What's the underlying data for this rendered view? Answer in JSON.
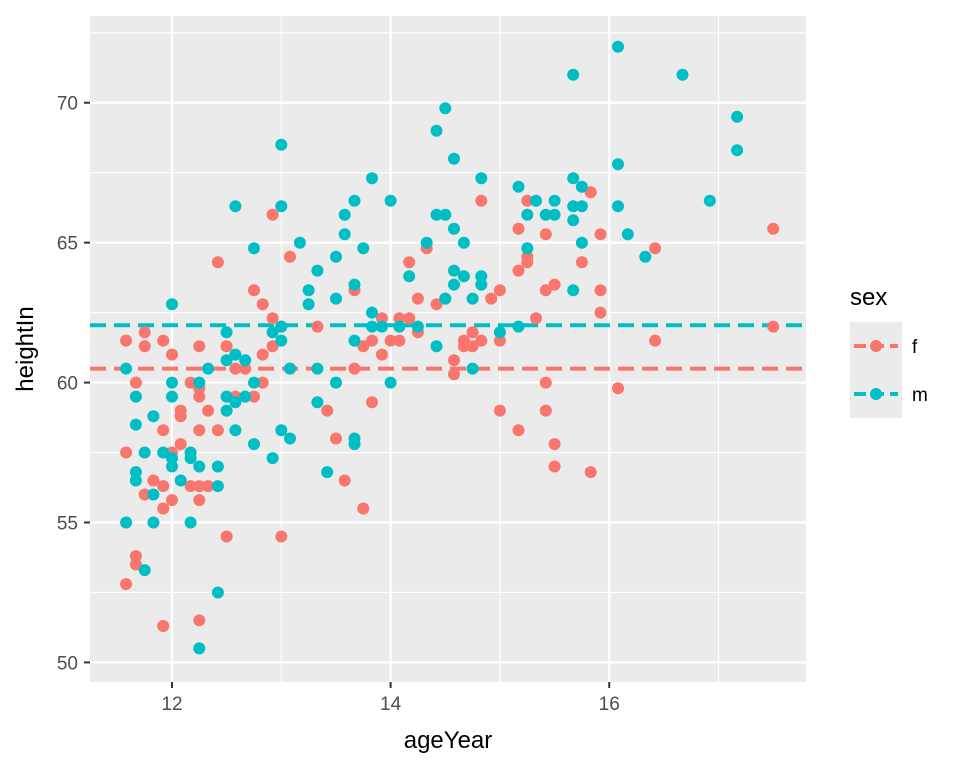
{
  "chart_data": {
    "type": "scatter",
    "xlabel": "ageYear",
    "ylabel": "heightIn",
    "xlim": [
      11.25,
      17.8
    ],
    "ylim": [
      49.3,
      73.1
    ],
    "x_ticks": [
      12,
      14,
      16
    ],
    "x_tick_labels": [
      "12",
      "14",
      "16"
    ],
    "y_ticks": [
      50,
      55,
      60,
      65,
      70
    ],
    "y_tick_labels": [
      "50",
      "55",
      "60",
      "65",
      "70"
    ],
    "grid": true,
    "legend": {
      "title": "sex",
      "position": "right",
      "entries": [
        "f",
        "m"
      ]
    },
    "colors": {
      "f": "#F8766D",
      "m": "#00BFC4",
      "panel": "#EBEBEB",
      "grid": "#FFFFFF"
    },
    "series": [
      {
        "name": "f",
        "mean_line": 60.5,
        "points": [
          [
            11.58,
            52.8
          ],
          [
            11.58,
            57.5
          ],
          [
            11.58,
            61.5
          ],
          [
            11.67,
            53.5
          ],
          [
            11.67,
            53.8
          ],
          [
            11.67,
            60.0
          ],
          [
            11.75,
            56.0
          ],
          [
            11.75,
            61.3
          ],
          [
            11.75,
            61.8
          ],
          [
            11.83,
            56.5
          ],
          [
            11.92,
            51.3
          ],
          [
            11.92,
            55.5
          ],
          [
            11.92,
            56.3
          ],
          [
            11.92,
            58.3
          ],
          [
            11.92,
            61.5
          ],
          [
            12.0,
            55.8
          ],
          [
            12.0,
            57.5
          ],
          [
            12.0,
            61.0
          ],
          [
            12.08,
            57.8
          ],
          [
            12.08,
            58.8
          ],
          [
            12.08,
            59.0
          ],
          [
            12.17,
            56.3
          ],
          [
            12.17,
            60.0
          ],
          [
            12.25,
            51.5
          ],
          [
            12.25,
            55.8
          ],
          [
            12.25,
            56.3
          ],
          [
            12.25,
            58.3
          ],
          [
            12.25,
            59.5
          ],
          [
            12.25,
            59.8
          ],
          [
            12.25,
            61.3
          ],
          [
            12.33,
            56.3
          ],
          [
            12.33,
            59.0
          ],
          [
            12.42,
            58.3
          ],
          [
            12.42,
            64.3
          ],
          [
            12.5,
            54.5
          ],
          [
            12.5,
            61.3
          ],
          [
            12.58,
            59.5
          ],
          [
            12.58,
            60.5
          ],
          [
            12.67,
            60.5
          ],
          [
            12.75,
            59.5
          ],
          [
            12.75,
            63.3
          ],
          [
            12.83,
            60.0
          ],
          [
            12.83,
            61.0
          ],
          [
            12.83,
            62.8
          ],
          [
            12.92,
            62.3
          ],
          [
            12.92,
            66.0
          ],
          [
            12.92,
            61.3
          ],
          [
            13.0,
            54.5
          ],
          [
            13.0,
            62.0
          ],
          [
            13.08,
            60.5
          ],
          [
            13.08,
            64.5
          ],
          [
            13.33,
            62.0
          ],
          [
            13.42,
            59.0
          ],
          [
            13.5,
            58.0
          ],
          [
            13.58,
            56.5
          ],
          [
            13.67,
            60.5
          ],
          [
            13.67,
            63.3
          ],
          [
            13.75,
            55.5
          ],
          [
            13.75,
            61.3
          ],
          [
            13.83,
            59.3
          ],
          [
            13.83,
            61.5
          ],
          [
            13.92,
            61.0
          ],
          [
            13.92,
            62.3
          ],
          [
            14.0,
            61.5
          ],
          [
            14.08,
            61.5
          ],
          [
            14.08,
            62.3
          ],
          [
            14.17,
            62.3
          ],
          [
            14.17,
            64.3
          ],
          [
            14.25,
            61.8
          ],
          [
            14.25,
            63.0
          ],
          [
            14.33,
            64.8
          ],
          [
            14.42,
            62.8
          ],
          [
            14.5,
            63.0
          ],
          [
            14.58,
            60.3
          ],
          [
            14.58,
            60.8
          ],
          [
            14.67,
            61.3
          ],
          [
            14.67,
            61.5
          ],
          [
            14.75,
            61.3
          ],
          [
            14.75,
            61.8
          ],
          [
            14.83,
            66.5
          ],
          [
            14.83,
            61.5
          ],
          [
            14.92,
            63.0
          ],
          [
            15.0,
            59.0
          ],
          [
            15.0,
            61.5
          ],
          [
            15.0,
            63.3
          ],
          [
            15.17,
            58.3
          ],
          [
            15.17,
            64.0
          ],
          [
            15.17,
            65.5
          ],
          [
            15.25,
            64.3
          ],
          [
            15.25,
            64.5
          ],
          [
            15.25,
            66.5
          ],
          [
            15.33,
            62.3
          ],
          [
            15.42,
            59.0
          ],
          [
            15.42,
            60.0
          ],
          [
            15.42,
            63.3
          ],
          [
            15.42,
            65.3
          ],
          [
            15.5,
            57.0
          ],
          [
            15.5,
            57.8
          ],
          [
            15.5,
            63.5
          ],
          [
            15.75,
            64.3
          ],
          [
            15.83,
            56.8
          ],
          [
            15.83,
            66.8
          ],
          [
            15.92,
            62.5
          ],
          [
            15.92,
            63.3
          ],
          [
            15.92,
            65.3
          ],
          [
            16.08,
            59.8
          ],
          [
            16.42,
            61.5
          ],
          [
            16.42,
            64.8
          ],
          [
            17.5,
            62.0
          ],
          [
            17.5,
            65.5
          ]
        ]
      },
      {
        "name": "m",
        "mean_line": 62.05,
        "points": [
          [
            11.58,
            55.0
          ],
          [
            11.58,
            60.5
          ],
          [
            11.67,
            56.5
          ],
          [
            11.67,
            56.8
          ],
          [
            11.67,
            58.5
          ],
          [
            11.67,
            59.5
          ],
          [
            11.75,
            53.3
          ],
          [
            11.75,
            57.5
          ],
          [
            11.83,
            55.0
          ],
          [
            11.83,
            56.0
          ],
          [
            11.83,
            58.8
          ],
          [
            11.92,
            57.5
          ],
          [
            12.0,
            57.0
          ],
          [
            12.0,
            57.3
          ],
          [
            12.0,
            59.5
          ],
          [
            12.0,
            60.0
          ],
          [
            12.0,
            62.8
          ],
          [
            12.08,
            56.5
          ],
          [
            12.17,
            55.0
          ],
          [
            12.17,
            57.3
          ],
          [
            12.17,
            57.5
          ],
          [
            12.25,
            50.5
          ],
          [
            12.25,
            57.0
          ],
          [
            12.25,
            60.0
          ],
          [
            12.33,
            60.5
          ],
          [
            12.42,
            52.5
          ],
          [
            12.42,
            56.3
          ],
          [
            12.42,
            57.0
          ],
          [
            12.5,
            59.0
          ],
          [
            12.5,
            59.5
          ],
          [
            12.5,
            60.8
          ],
          [
            12.5,
            61.8
          ],
          [
            12.58,
            58.3
          ],
          [
            12.58,
            59.3
          ],
          [
            12.58,
            61.0
          ],
          [
            12.58,
            66.3
          ],
          [
            12.67,
            60.8
          ],
          [
            12.67,
            59.5
          ],
          [
            12.75,
            57.8
          ],
          [
            12.75,
            60.0
          ],
          [
            12.75,
            64.8
          ],
          [
            12.92,
            57.3
          ],
          [
            12.92,
            61.8
          ],
          [
            13.0,
            58.3
          ],
          [
            13.0,
            61.5
          ],
          [
            13.0,
            62.0
          ],
          [
            13.0,
            66.3
          ],
          [
            13.0,
            68.5
          ],
          [
            13.08,
            58.0
          ],
          [
            13.08,
            60.5
          ],
          [
            13.17,
            65.0
          ],
          [
            13.25,
            62.8
          ],
          [
            13.25,
            63.3
          ],
          [
            13.33,
            59.3
          ],
          [
            13.33,
            60.5
          ],
          [
            13.33,
            64.0
          ],
          [
            13.42,
            56.8
          ],
          [
            13.5,
            60.0
          ],
          [
            13.5,
            63.0
          ],
          [
            13.5,
            64.5
          ],
          [
            13.58,
            65.3
          ],
          [
            13.58,
            66.0
          ],
          [
            13.67,
            57.8
          ],
          [
            13.67,
            58.0
          ],
          [
            13.67,
            61.5
          ],
          [
            13.67,
            63.5
          ],
          [
            13.67,
            66.5
          ],
          [
            13.75,
            64.8
          ],
          [
            13.83,
            62.0
          ],
          [
            13.83,
            62.5
          ],
          [
            13.83,
            67.3
          ],
          [
            13.92,
            62.0
          ],
          [
            14.0,
            60.0
          ],
          [
            14.0,
            66.5
          ],
          [
            14.08,
            62.0
          ],
          [
            14.17,
            63.8
          ],
          [
            14.25,
            62.0
          ],
          [
            14.33,
            65.0
          ],
          [
            14.42,
            61.3
          ],
          [
            14.42,
            66.0
          ],
          [
            14.42,
            69.0
          ],
          [
            14.5,
            63.0
          ],
          [
            14.5,
            66.0
          ],
          [
            14.5,
            69.8
          ],
          [
            14.58,
            63.5
          ],
          [
            14.58,
            64.0
          ],
          [
            14.58,
            65.5
          ],
          [
            14.58,
            68.0
          ],
          [
            14.67,
            63.8
          ],
          [
            14.67,
            65.0
          ],
          [
            14.75,
            60.5
          ],
          [
            14.75,
            63.0
          ],
          [
            14.83,
            63.5
          ],
          [
            14.83,
            63.8
          ],
          [
            14.83,
            67.3
          ],
          [
            15.0,
            61.8
          ],
          [
            15.17,
            62.0
          ],
          [
            15.17,
            67.0
          ],
          [
            15.25,
            64.8
          ],
          [
            15.25,
            66.0
          ],
          [
            15.33,
            66.5
          ],
          [
            15.42,
            66.0
          ],
          [
            15.5,
            66.0
          ],
          [
            15.5,
            66.5
          ],
          [
            15.67,
            63.3
          ],
          [
            15.67,
            65.8
          ],
          [
            15.67,
            66.3
          ],
          [
            15.67,
            67.3
          ],
          [
            15.67,
            71.0
          ],
          [
            15.75,
            65.0
          ],
          [
            15.75,
            66.3
          ],
          [
            15.75,
            67.0
          ],
          [
            16.08,
            66.3
          ],
          [
            16.08,
            67.8
          ],
          [
            16.08,
            72.0
          ],
          [
            16.17,
            65.3
          ],
          [
            16.33,
            64.5
          ],
          [
            16.67,
            71.0
          ],
          [
            16.92,
            66.5
          ],
          [
            17.17,
            68.3
          ],
          [
            17.17,
            69.5
          ]
        ]
      }
    ]
  }
}
